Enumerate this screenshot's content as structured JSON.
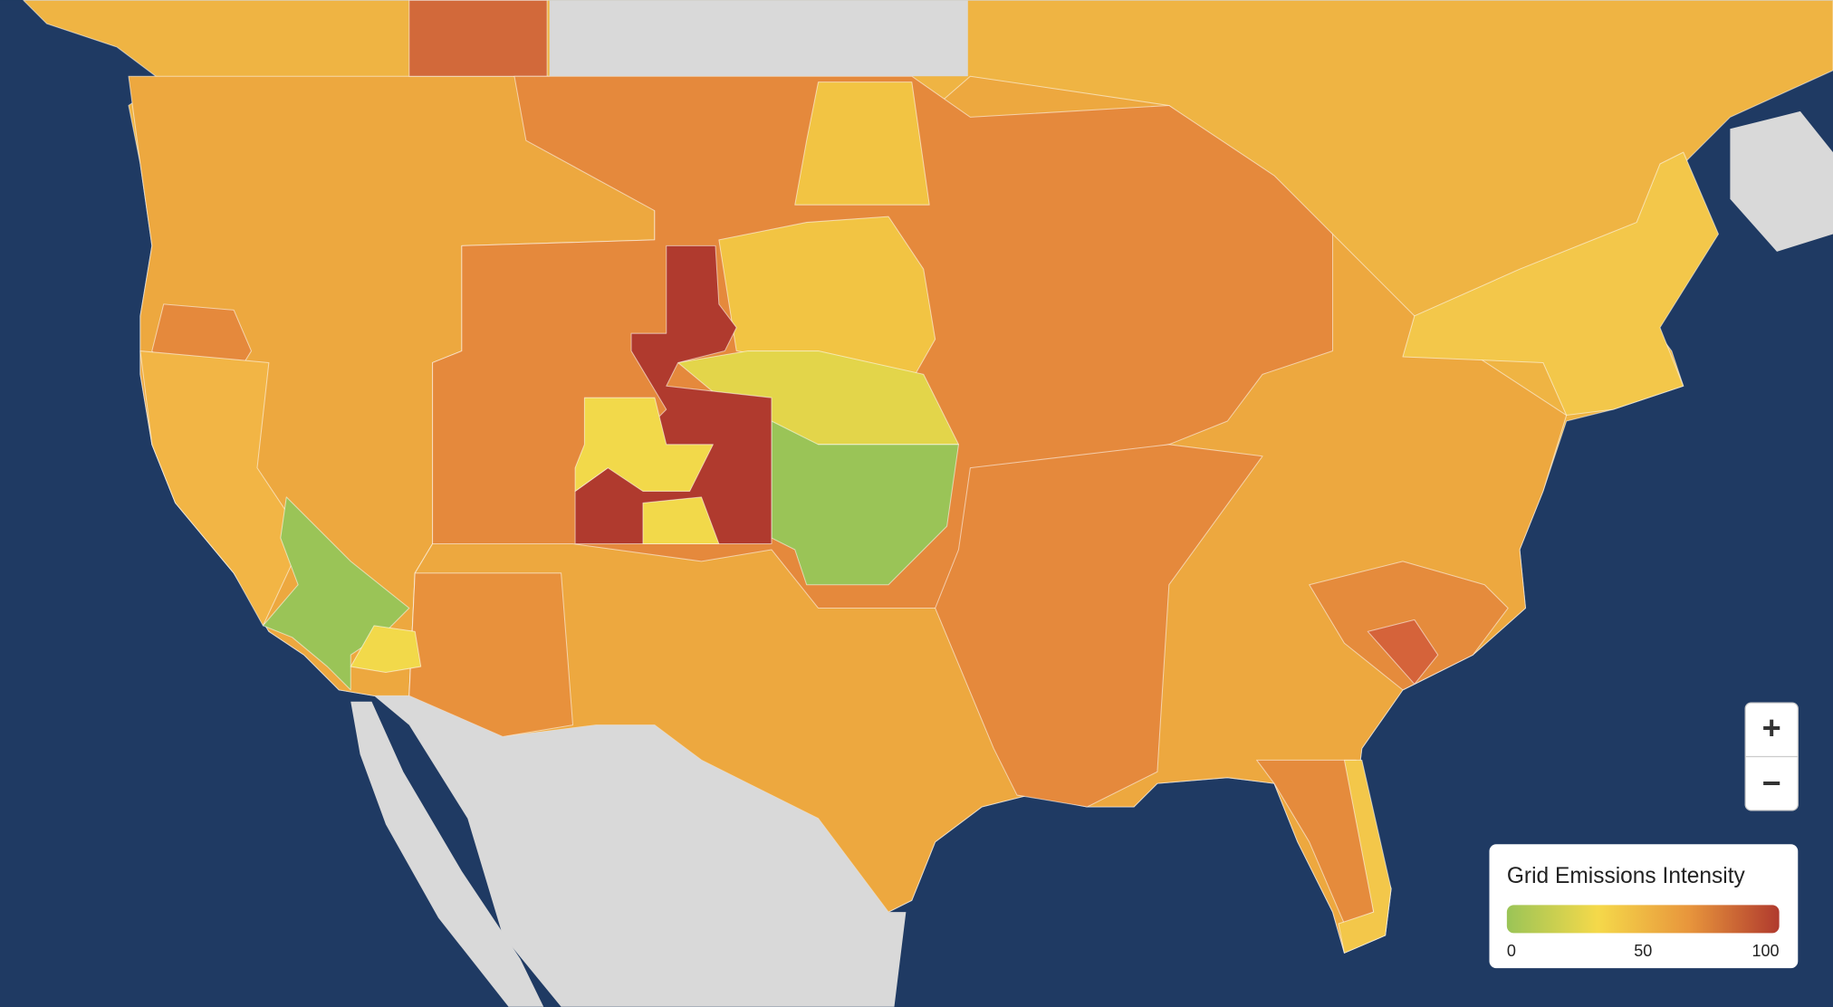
{
  "legend": {
    "title": "Grid Emissions Intensity",
    "min": 0,
    "max": 100,
    "ticks": [
      0,
      50,
      100
    ],
    "colors": [
      "#9ac457",
      "#f5d94a",
      "#e8963c",
      "#b03a2e"
    ]
  },
  "controls": {
    "zoom_in": "+",
    "zoom_out": "−"
  }
}
